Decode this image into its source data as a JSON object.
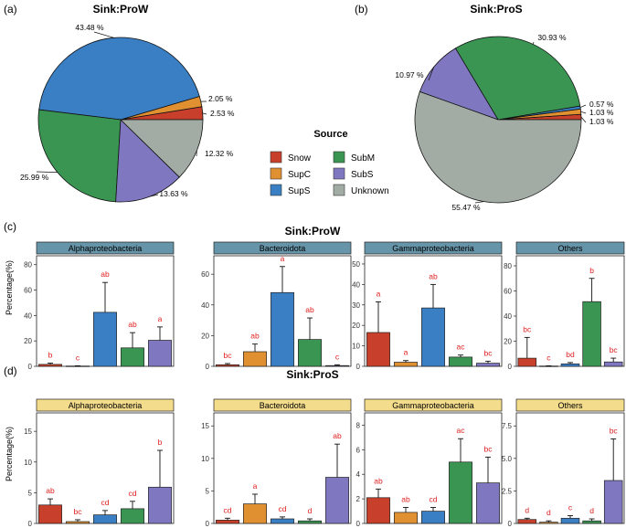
{
  "colors": {
    "Snow": "#c8402c",
    "SupC": "#e09030",
    "SupS": "#3a7fc4",
    "SubM": "#3a9552",
    "SubS": "#7f78c0",
    "Unknown": "#a3aca4",
    "strip_proW": "#6694a8",
    "strip_proS": "#f3dc8c",
    "sig": "#e02020"
  },
  "panel_labels": {
    "a": "(a)",
    "b": "(b)",
    "c": "(c)",
    "d": "(d)"
  },
  "legend": {
    "title": "Source",
    "items": [
      "Snow",
      "SupC",
      "SupS",
      "SubM",
      "SubS",
      "Unknown"
    ]
  },
  "y_label": "Percentage(%)",
  "chart_data": [
    {
      "type": "pie",
      "id": "pieA",
      "title": "Sink:ProW",
      "slices": [
        {
          "name": "Snow",
          "value": 2.53,
          "label": "2.53 %"
        },
        {
          "name": "SupC",
          "value": 2.05,
          "label": "2.05 %"
        },
        {
          "name": "SupS",
          "value": 43.48,
          "label": "43.48 %"
        },
        {
          "name": "SubM",
          "value": 25.99,
          "label": "25.99 %"
        },
        {
          "name": "SubS",
          "value": 13.63,
          "label": "13.63 %"
        },
        {
          "name": "Unknown",
          "value": 12.32,
          "label": "12.32 %"
        }
      ]
    },
    {
      "type": "pie",
      "id": "pieB",
      "title": "Sink:ProS",
      "slices": [
        {
          "name": "Snow",
          "value": 1.03,
          "label": "1.03 %"
        },
        {
          "name": "SupC",
          "value": 1.03,
          "label": "1.03 %"
        },
        {
          "name": "SupS",
          "value": 0.57,
          "label": "0.57 %"
        },
        {
          "name": "SubM",
          "value": 30.93,
          "label": "30.93 %"
        },
        {
          "name": "SubS",
          "value": 10.97,
          "label": "10.97 %"
        },
        {
          "name": "Unknown",
          "value": 55.47,
          "label": "55.47 %"
        }
      ]
    },
    {
      "type": "bar",
      "id": "barsC",
      "title": "Sink:ProW",
      "categories": [
        "Snow",
        "SupC",
        "SupS",
        "SubM",
        "SubS"
      ],
      "facets": [
        {
          "name": "Alphaproteobacteria",
          "ylim": [
            0,
            87
          ],
          "ticks": [
            0,
            20,
            40,
            60,
            80
          ],
          "values": [
            1.5,
            0.2,
            42.5,
            14.5,
            20.5
          ],
          "errors": [
            1.0,
            0.2,
            23.5,
            12.0,
            10.5
          ],
          "letters": [
            "b",
            "c",
            "ab",
            "ab",
            "a"
          ]
        },
        {
          "name": "Bacteroidota",
          "ylim": [
            0,
            72
          ],
          "ticks": [
            0,
            20,
            40,
            60
          ],
          "values": [
            1.0,
            9.5,
            48.0,
            17.5,
            0.5
          ],
          "errors": [
            0.8,
            5.0,
            17.0,
            14.0,
            0.5
          ],
          "letters": [
            "bc",
            "ab",
            "a",
            "ab",
            "c"
          ]
        },
        {
          "name": "Gammaproteobacteria",
          "ylim": [
            0,
            54
          ],
          "ticks": [
            0,
            10,
            20,
            30,
            40,
            50
          ],
          "values": [
            16.5,
            2.0,
            28.5,
            4.5,
            1.5
          ],
          "errors": [
            15.0,
            0.8,
            11.5,
            1.0,
            1.0
          ],
          "letters": [
            "a",
            "a",
            "ab",
            "ac",
            "bc"
          ]
        },
        {
          "name": "Others",
          "ylim": [
            0,
            88
          ],
          "ticks": [
            0,
            20,
            40,
            60,
            80
          ],
          "values": [
            6.5,
            0.2,
            2.0,
            51.5,
            3.5
          ],
          "errors": [
            16.5,
            0.2,
            1.0,
            18.5,
            3.0
          ],
          "letters": [
            "bc",
            "c",
            "bd",
            "b",
            "bc"
          ]
        }
      ]
    },
    {
      "type": "bar",
      "id": "barsD",
      "title": "Sink:ProS",
      "categories": [
        "Snow",
        "SupC",
        "SupS",
        "SubM",
        "SubS"
      ],
      "facets": [
        {
          "name": "Alphaproteobacteria",
          "ylim": [
            0,
            18
          ],
          "ticks": [
            0,
            5,
            10,
            15
          ],
          "values": [
            3.0,
            0.3,
            1.4,
            2.4,
            5.9
          ],
          "errors": [
            1.0,
            0.3,
            0.7,
            1.2,
            6.0
          ],
          "letters": [
            "ab",
            "bc",
            "cd",
            "cd",
            "b"
          ]
        },
        {
          "name": "Bacteroidota",
          "ylim": [
            0,
            17
          ],
          "ticks": [
            0,
            5,
            10,
            15
          ],
          "values": [
            0.5,
            3.0,
            0.7,
            0.4,
            7.1
          ],
          "errors": [
            0.3,
            1.5,
            0.3,
            0.3,
            5.1
          ],
          "letters": [
            "cd",
            "a",
            "cd",
            "d",
            "ab"
          ]
        },
        {
          "name": "Gammaproteobacteria",
          "ylim": [
            0,
            9
          ],
          "ticks": [
            0,
            2,
            4,
            6,
            8
          ],
          "values": [
            2.1,
            0.9,
            1.0,
            5.0,
            3.3
          ],
          "errors": [
            0.7,
            0.4,
            0.3,
            1.9,
            2.1
          ],
          "letters": [
            "ab",
            "ab",
            "cd",
            "ac",
            "bc"
          ]
        },
        {
          "name": "Others",
          "ylim": [
            0,
            8.5
          ],
          "ticks": [
            0,
            2.5,
            5.0,
            7.5
          ],
          "tickLabels": [
            "0",
            "2.5",
            "5.0",
            "7.5"
          ],
          "values": [
            0.3,
            0.1,
            0.4,
            0.2,
            3.3
          ],
          "errors": [
            0.1,
            0.1,
            0.2,
            0.15,
            3.2
          ],
          "letters": [
            "d",
            "d",
            "c",
            "d",
            "bc"
          ]
        }
      ]
    }
  ]
}
